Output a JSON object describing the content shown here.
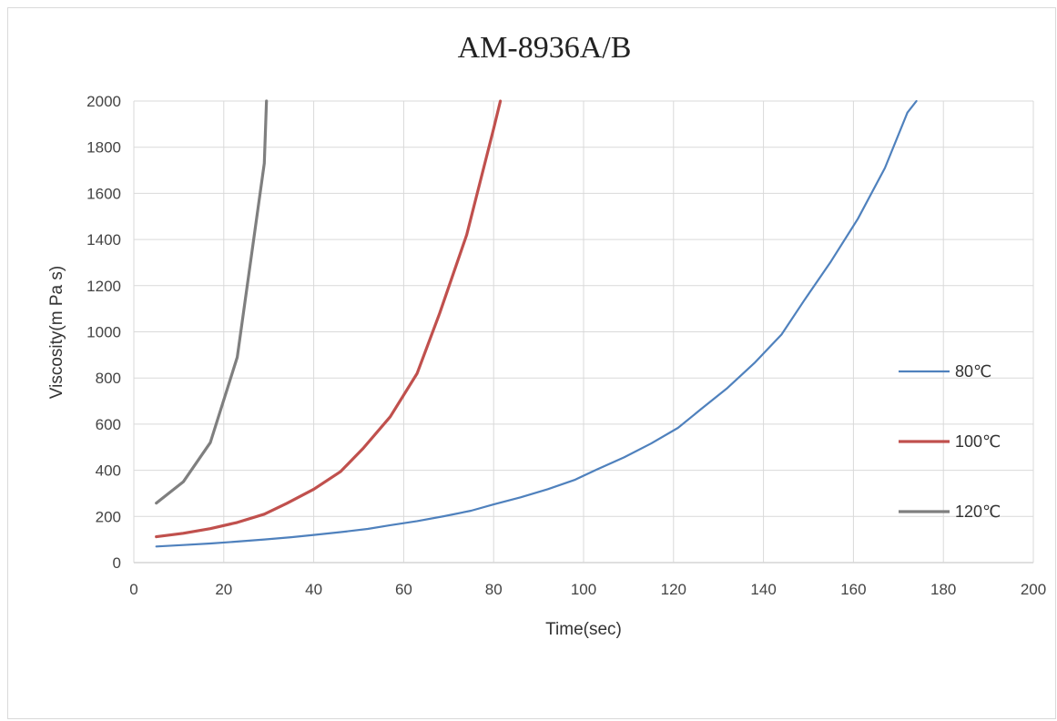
{
  "chart_data": {
    "type": "line",
    "title": "AM-8936A/B",
    "xlabel": "Time(sec)",
    "ylabel": "Viscosity(m Pa s)",
    "xlim": [
      0,
      200
    ],
    "ylim": [
      0,
      2000
    ],
    "xticks": [
      0,
      20,
      40,
      60,
      80,
      100,
      120,
      140,
      160,
      180,
      200
    ],
    "yticks": [
      0,
      200,
      400,
      600,
      800,
      1000,
      1200,
      1400,
      1600,
      1800,
      2000
    ],
    "grid": true,
    "legend_position": "right",
    "series": [
      {
        "name": "80℃",
        "color": "#4f81bd",
        "x": [
          5,
          11,
          17,
          23,
          29,
          35,
          40,
          46,
          52,
          57,
          63,
          69,
          75,
          80,
          86,
          92,
          98,
          103,
          109,
          115,
          121,
          126,
          132,
          138,
          144,
          149,
          155,
          161,
          167,
          172,
          174
        ],
        "y": [
          70,
          76,
          83,
          91,
          100,
          110,
          120,
          132,
          146,
          162,
          180,
          201,
          225,
          252,
          283,
          318,
          358,
          404,
          456,
          516,
          584,
          663,
          757,
          865,
          988,
          1135,
          1305,
          1490,
          1710,
          1950,
          2000
        ]
      },
      {
        "name": "100℃",
        "color": "#c0504d",
        "x": [
          5,
          11,
          17,
          23,
          29,
          34,
          40,
          46,
          51,
          57,
          63,
          68,
          74,
          80,
          81.5
        ],
        "y": [
          112,
          127,
          147,
          174,
          210,
          257,
          318,
          395,
          495,
          632,
          820,
          1080,
          1420,
          1880,
          2000
        ]
      },
      {
        "name": "120℃",
        "color": "#7f7f7f",
        "x": [
          5,
          11,
          17,
          23,
          29,
          29.5
        ],
        "y": [
          258,
          350,
          520,
          890,
          1730,
          2000
        ]
      }
    ]
  }
}
